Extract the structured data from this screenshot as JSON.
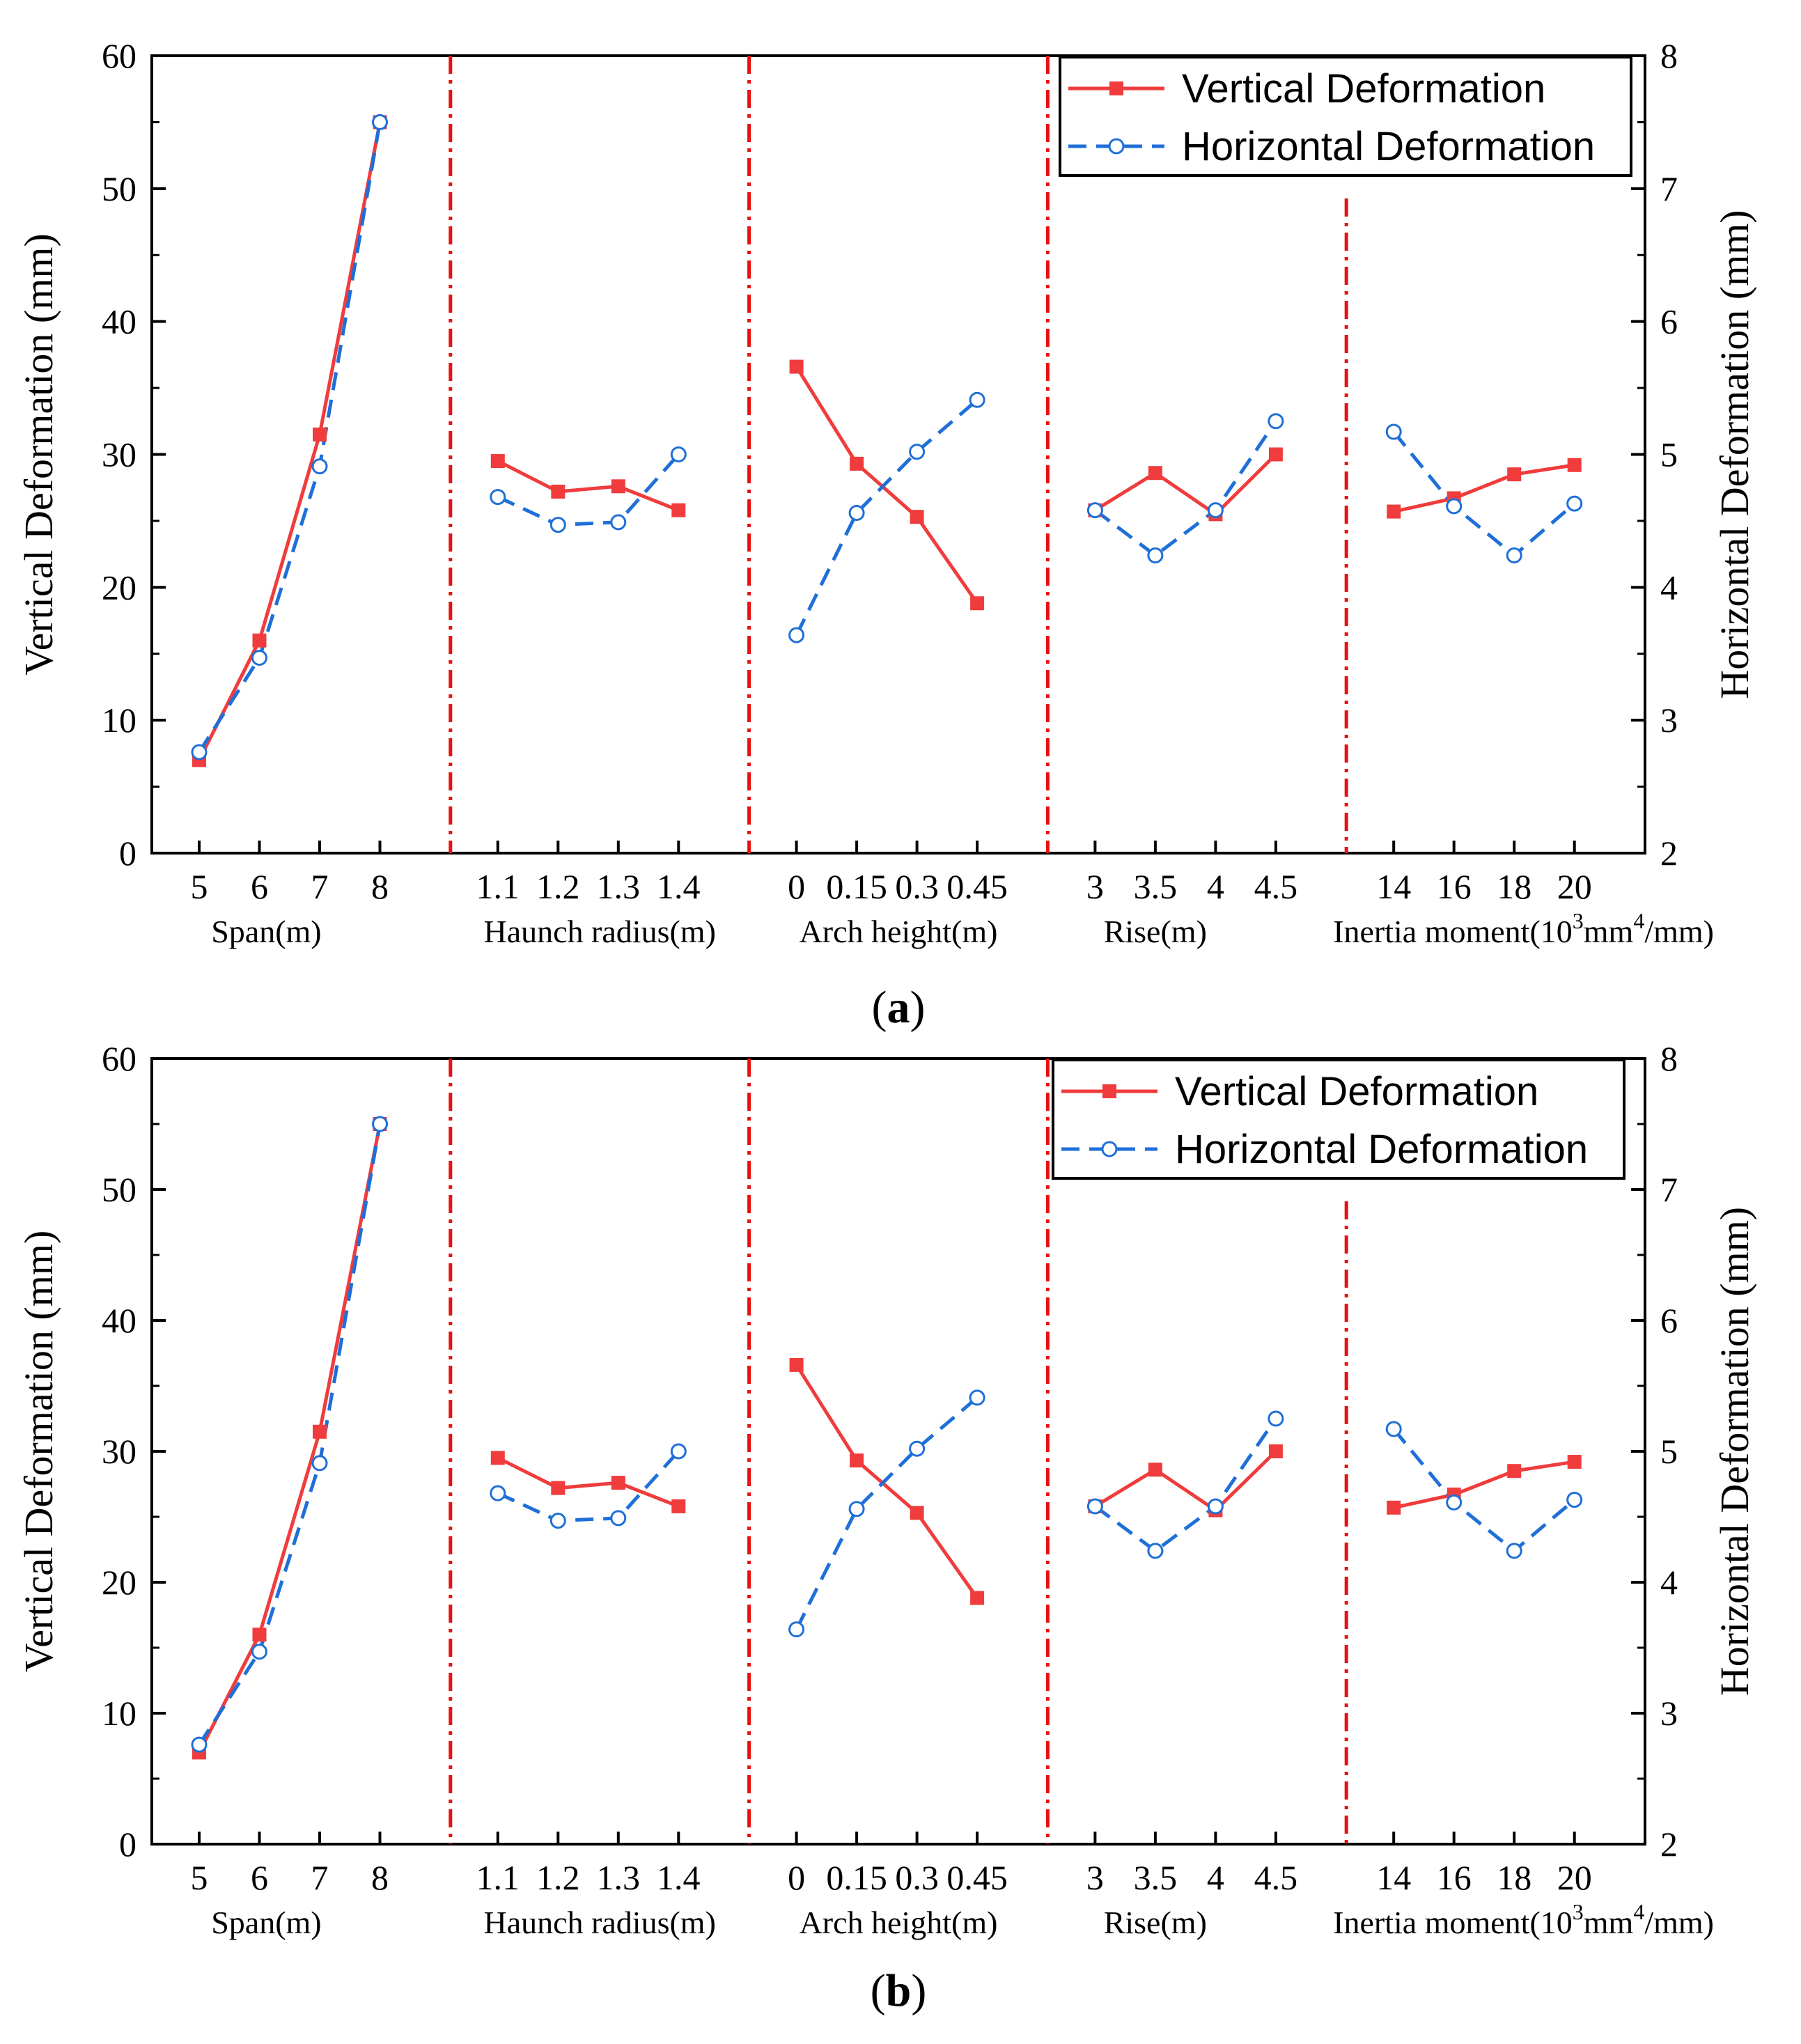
{
  "colors": {
    "vertical": "#f03c3c",
    "horizontal": "#1f6fd8",
    "divider": "#e81010",
    "axis": "#000000"
  },
  "legend": {
    "vertical": "Vertical Deformation",
    "horizontal": "Horizontal Deformation"
  },
  "chart_data": [
    {
      "panel": "(a)",
      "panel_letter": "a",
      "type": "line",
      "ylabel_left": "Vertical Deformation (mm)",
      "ylabel_right": "Horizontal Deformation (mm)",
      "ylim_left": [
        0,
        60
      ],
      "yticks_left": [
        "0",
        "10",
        "20",
        "30",
        "40",
        "50",
        "60"
      ],
      "ylim_right": [
        2,
        8
      ],
      "yticks_right": [
        "2",
        "3",
        "4",
        "5",
        "6",
        "7",
        "8"
      ],
      "legend_position": "top-right",
      "groups": [
        {
          "xlabel": "Span(m)",
          "categories": [
            "5",
            "6",
            "7",
            "8"
          ],
          "vertical": [
            7.0,
            16.0,
            31.5,
            55.0
          ],
          "horizontal": [
            2.76,
            3.47,
            4.91,
            7.5
          ]
        },
        {
          "xlabel": "Haunch radius(m)",
          "categories": [
            "1.1",
            "1.2",
            "1.3",
            "1.4"
          ],
          "vertical": [
            29.5,
            27.2,
            27.6,
            25.8
          ],
          "horizontal": [
            4.68,
            4.47,
            4.49,
            5.0
          ]
        },
        {
          "xlabel": "Arch height(m)",
          "categories": [
            "0",
            "0.15",
            "0.3",
            "0.45"
          ],
          "vertical": [
            36.6,
            29.3,
            25.3,
            18.8
          ],
          "horizontal": [
            3.64,
            4.56,
            5.02,
            5.41
          ]
        },
        {
          "xlabel": "Rise(m)",
          "categories": [
            "3",
            "3.5",
            "4",
            "4.5"
          ],
          "vertical": [
            25.8,
            28.6,
            25.5,
            30.0
          ],
          "horizontal": [
            4.58,
            4.24,
            4.58,
            5.25
          ]
        },
        {
          "xlabel": "Inertia moment(",
          "xlabel_parts": [
            "Inertia moment(10",
            "3",
            "mm",
            "4",
            "/mm)"
          ],
          "categories": [
            "14",
            "16",
            "18",
            "20"
          ],
          "vertical": [
            25.7,
            26.7,
            28.5,
            29.2
          ],
          "horizontal": [
            5.17,
            4.61,
            4.24,
            4.63
          ]
        }
      ]
    },
    {
      "panel": "(b)",
      "panel_letter": "b",
      "type": "line",
      "ylabel_left": "Vertical Deformation (mm)",
      "ylabel_right": "Horizontal Deformation (mm)",
      "ylim_left": [
        0,
        60
      ],
      "yticks_left": [
        "0",
        "10",
        "20",
        "30",
        "40",
        "50",
        "60"
      ],
      "ylim_right": [
        2,
        8
      ],
      "yticks_right": [
        "2",
        "3",
        "4",
        "5",
        "6",
        "7",
        "8"
      ],
      "legend_position": "top-right",
      "groups": [
        {
          "xlabel": "Span(m)",
          "categories": [
            "5",
            "6",
            "7",
            "8"
          ],
          "vertical": [
            7.0,
            16.0,
            31.5,
            55.0
          ],
          "horizontal": [
            2.76,
            3.47,
            4.91,
            7.5
          ]
        },
        {
          "xlabel": "Haunch radius(m)",
          "categories": [
            "1.1",
            "1.2",
            "1.3",
            "1.4"
          ],
          "vertical": [
            29.5,
            27.2,
            27.6,
            25.8
          ],
          "horizontal": [
            4.68,
            4.47,
            4.49,
            5.0
          ]
        },
        {
          "xlabel": "Arch height(m)",
          "categories": [
            "0",
            "0.15",
            "0.3",
            "0.45"
          ],
          "vertical": [
            36.6,
            29.3,
            25.3,
            18.8
          ],
          "horizontal": [
            3.64,
            4.56,
            5.02,
            5.41
          ]
        },
        {
          "xlabel": "Rise(m)",
          "categories": [
            "3",
            "3.5",
            "4",
            "4.5"
          ],
          "vertical": [
            25.8,
            28.6,
            25.5,
            30.0
          ],
          "horizontal": [
            4.58,
            4.24,
            4.58,
            5.25
          ]
        },
        {
          "xlabel": "Inertia moment(",
          "xlabel_parts": [
            "Inertia moment(10",
            "3",
            "mm",
            "4",
            "/mm)"
          ],
          "categories": [
            "14",
            "16",
            "18",
            "20"
          ],
          "vertical": [
            25.7,
            26.7,
            28.5,
            29.2
          ],
          "horizontal": [
            5.17,
            4.61,
            4.24,
            4.63
          ]
        }
      ]
    }
  ]
}
